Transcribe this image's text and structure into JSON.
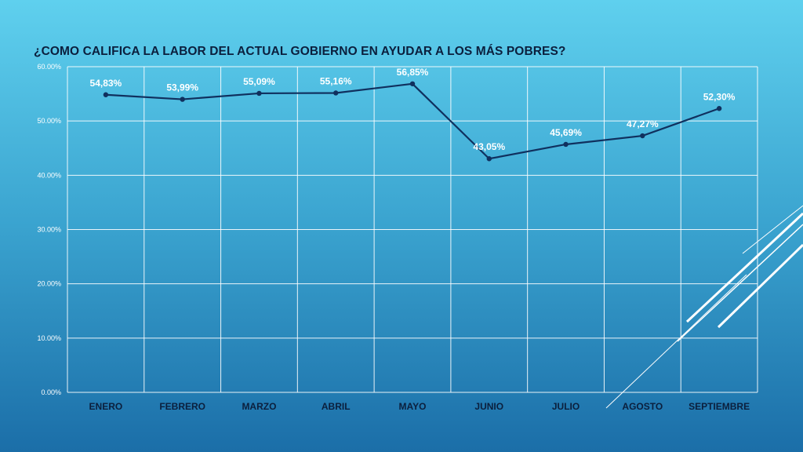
{
  "slide": {
    "title": "¿COMO CALIFICA LA LABOR DEL ACTUAL GOBIERNO EN AYUDAR A LOS MÁS POBRES?"
  },
  "colors": {
    "background_top": "#5fd0ee",
    "background_bottom": "#1b6ea8",
    "line": "#10305e",
    "grid": "#ffffff",
    "title": "#0b1f3d"
  },
  "chart_data": {
    "type": "line",
    "title": "",
    "xlabel": "",
    "ylabel": "",
    "categories": [
      "ENERO",
      "FEBRERO",
      "MARZO",
      "ABRIL",
      "MAYO",
      "JUNIO",
      "JULIO",
      "AGOSTO",
      "SEPTIEMBRE"
    ],
    "values": [
      54.83,
      53.99,
      55.09,
      55.16,
      56.85,
      43.05,
      45.69,
      47.27,
      52.3
    ],
    "data_labels": [
      "54,83%",
      "53,99%",
      "55,09%",
      "55,16%",
      "56,85%",
      "43,05%",
      "45,69%",
      "47,27%",
      "52,30%"
    ],
    "ylim": [
      0,
      60
    ],
    "yticks": [
      0,
      10,
      20,
      30,
      40,
      50,
      60
    ],
    "ytick_labels": [
      "0.00%",
      "10.00%",
      "20.00%",
      "30.00%",
      "40.00%",
      "50.00%",
      "60.00%"
    ],
    "grid": true,
    "legend": "none"
  }
}
